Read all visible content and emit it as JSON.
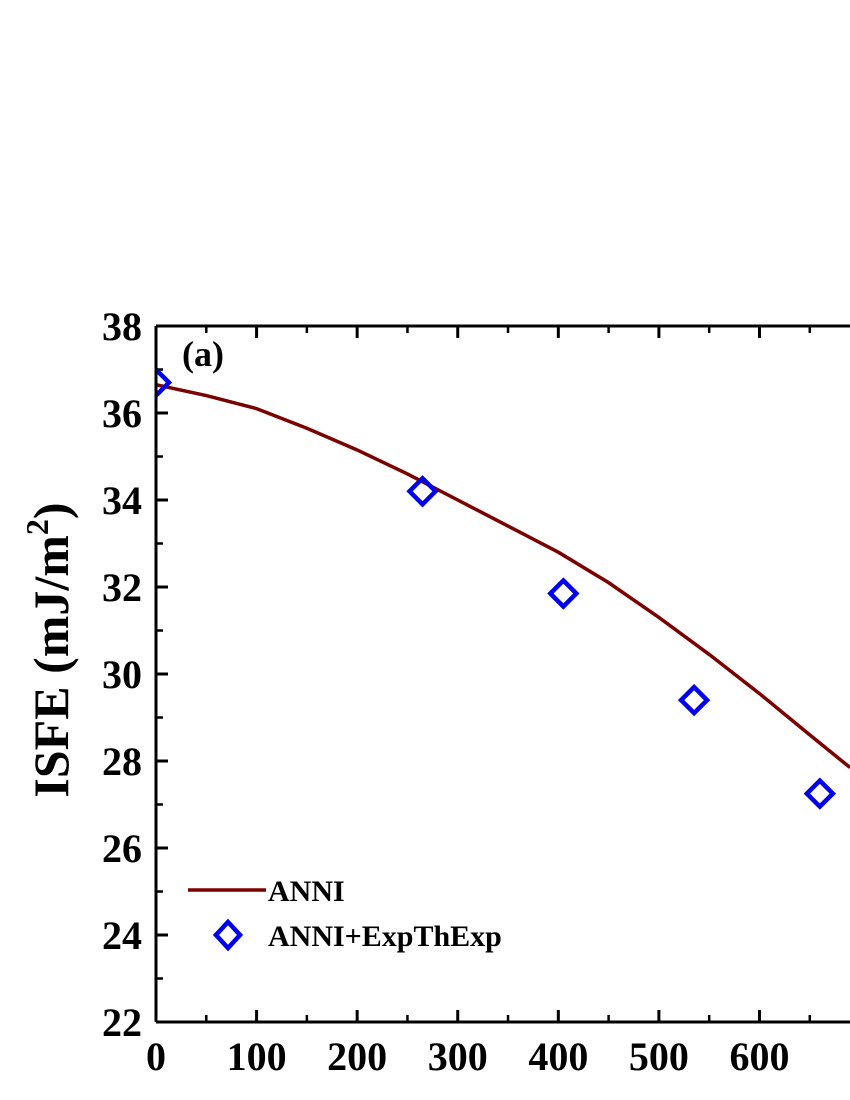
{
  "chart_data": {
    "type": "line",
    "panel_label": "(a)",
    "ylabel": "ISFE (mJ/m",
    "ylabel_sup": "2",
    "ylabel_close": ")",
    "xlabel": "",
    "xlim": [
      0,
      690
    ],
    "ylim": [
      22,
      38
    ],
    "x_ticks": [
      0,
      100,
      200,
      300,
      400,
      500,
      600
    ],
    "y_ticks": [
      22,
      24,
      26,
      28,
      30,
      32,
      34,
      36,
      38
    ],
    "grid": false,
    "legend_position": "bottom-left",
    "series": [
      {
        "name": "ANNI",
        "kind": "line",
        "color": "#7b0000",
        "x": [
          0,
          50,
          100,
          150,
          200,
          250,
          300,
          350,
          400,
          450,
          500,
          550,
          600,
          650,
          690
        ],
        "y": [
          36.65,
          36.4,
          36.1,
          35.65,
          35.15,
          34.6,
          34.0,
          33.4,
          32.8,
          32.1,
          31.3,
          30.45,
          29.55,
          28.6,
          27.85
        ]
      },
      {
        "name": "ANNI+ExpThExp",
        "kind": "scatter",
        "marker": "diamond-open",
        "color": "#0000ee",
        "x": [
          0,
          265,
          405,
          535,
          660
        ],
        "y": [
          36.7,
          34.2,
          31.85,
          29.4,
          27.25
        ]
      }
    ]
  }
}
